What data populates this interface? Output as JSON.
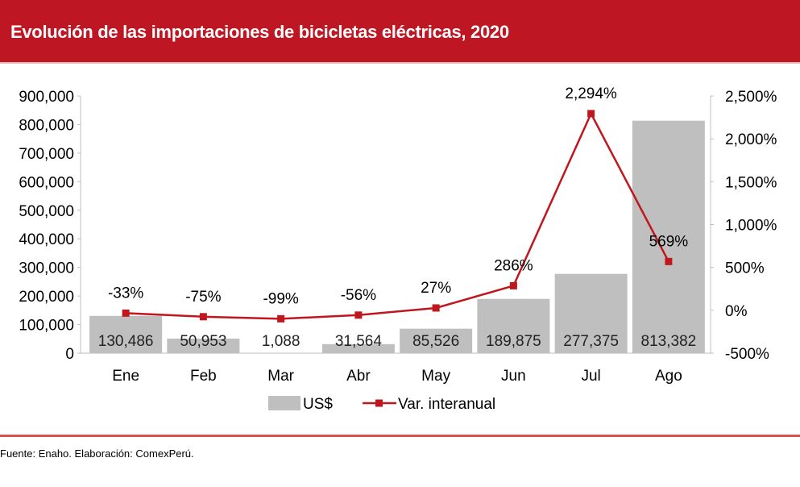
{
  "title": "Evolución de las importaciones de bicicletas eléctricas, 2020",
  "source": "Fuente: Enaho. Elaboración: ComexPerú.",
  "colors": {
    "header": "#BE1622",
    "bars": "#BFBFBF",
    "line": "#C0161E"
  },
  "chart_data": {
    "type": "bar+line",
    "categories": [
      "Ene",
      "Feb",
      "Mar",
      "Abr",
      "May",
      "Jun",
      "Jul",
      "Ago"
    ],
    "series": [
      {
        "name": "US$",
        "type": "bar",
        "axis": "left",
        "values": [
          130486,
          50953,
          1088,
          31564,
          85526,
          189875,
          277375,
          813382
        ],
        "labels": [
          "130,486",
          "50,953",
          "1,088",
          "31,564",
          "85,526",
          "189,875",
          "277,375",
          "813,382"
        ]
      },
      {
        "name": "Var. interanual",
        "type": "line",
        "axis": "right",
        "values": [
          -33,
          -75,
          -99,
          -56,
          27,
          286,
          2294,
          569
        ],
        "labels": [
          "-33%",
          "-75%",
          "-99%",
          "-56%",
          "27%",
          "286%",
          "2,294%",
          "569%"
        ]
      }
    ],
    "y_left": {
      "range": [
        0,
        900000
      ],
      "ticks": [
        "0",
        "100,000",
        "200,000",
        "300,000",
        "400,000",
        "500,000",
        "600,000",
        "700,000",
        "800,000",
        "900,000"
      ]
    },
    "y_right": {
      "range": [
        -500,
        2500
      ],
      "ticks": [
        "-500%",
        "0%",
        "500%",
        "1,000%",
        "1,500%",
        "2,000%",
        "2,500%"
      ]
    },
    "grid": false,
    "legend": "bottom-center"
  }
}
